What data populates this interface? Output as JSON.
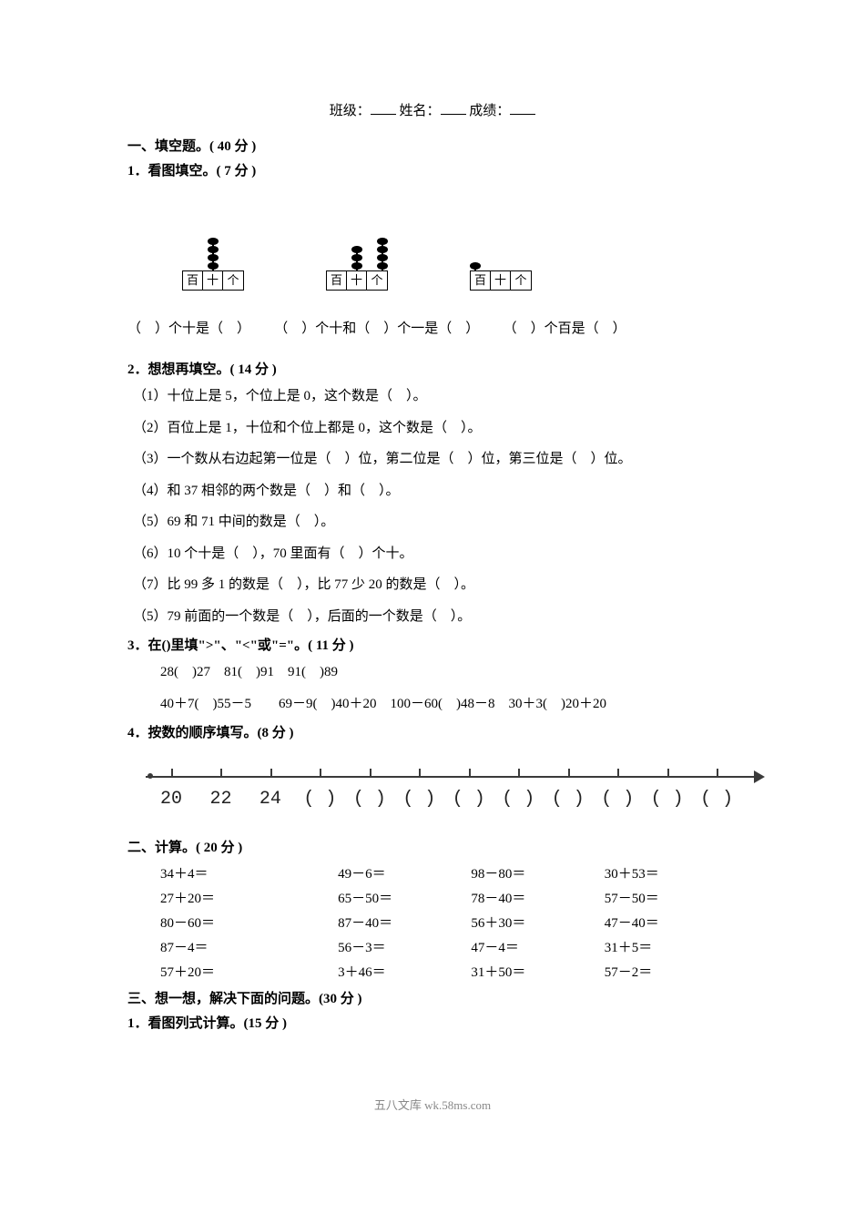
{
  "header": {
    "class_label": "班级：",
    "name_label": "姓名：",
    "score_label": "成绩："
  },
  "sec1": {
    "title": "一、填空题。( 40 分 )",
    "q1_title": "1．看图填空。( 7 分 )",
    "abacus": [
      {
        "beads": [
          0,
          4,
          0
        ],
        "labels": [
          "百",
          "十",
          "个"
        ]
      },
      {
        "beads": [
          0,
          3,
          4
        ],
        "labels": [
          "百",
          "十",
          "个"
        ]
      },
      {
        "beads": [
          1,
          0,
          0
        ],
        "labels": [
          "百",
          "十",
          "个"
        ]
      }
    ],
    "caption1": "（　）个十是（　）",
    "caption2": "（　）个十和（　）个一是（　）",
    "caption3": "（　）个百是（　）",
    "q2_title": "2．想想再填空。( 14 分 )",
    "q2_items": [
      "（1）十位上是 5，个位上是 0，这个数是（　）。",
      "（2）百位上是 1，十位和个位上都是 0，这个数是（　）。",
      "（3）一个数从右边起第一位是（　）位，第二位是（　）位，第三位是（　）位。",
      "（4）和 37 相邻的两个数是（　）和（　）。",
      "（5）69 和 71 中间的数是（　）。",
      "（6）10 个十是（　），70 里面有（　）个十。",
      "（7）比 99 多 1 的数是（　），比 77 少 20 的数是（　）。",
      "（5）79 前面的一个数是（　），后面的一个数是（　）。"
    ],
    "q3_title": "3．在()里填\">\"、\"<\"或\"=\"。( 11 分 )",
    "q3_line1": "28(　)27　81(　)91　91(　)89",
    "q3_line2": "40＋7(　)55－5　　69－9(　)40＋20　100－60(　)48－8　30＋3(　)20＋20",
    "q4_title": "4．按数的顺序填写。(8 分 )",
    "numline": {
      "ticks": 12,
      "labels": [
        "20",
        "22",
        "24",
        "(  )",
        "(  )",
        "(  )",
        "(  )",
        "(  )",
        "(  )",
        "(  )",
        "(  )",
        "(  )"
      ]
    }
  },
  "sec2": {
    "title": "二、计算。( 20 分 )",
    "rows": [
      [
        "34＋4＝",
        "49－6＝",
        "98－80＝",
        "30＋53＝"
      ],
      [
        "27＋20＝",
        "65－50＝",
        "78－40＝",
        "57－50＝"
      ],
      [
        "80－60＝",
        "87－40＝",
        "56＋30＝",
        "47－40＝"
      ],
      [
        "87－4＝",
        "56－3＝",
        "47－4＝",
        "31＋5＝"
      ],
      [
        "57＋20＝",
        "3＋46＝",
        "31＋50＝",
        "57－2＝"
      ]
    ]
  },
  "sec3": {
    "title": "三、想一想，解决下面的问题。(30 分 )",
    "q1": "1．看图列式计算。(15 分 )"
  },
  "footer": "五八文库 wk.58ms.com",
  "style": {
    "page_bg": "#ffffff",
    "text_color": "#000000",
    "numline_color": "#3a3a3a"
  }
}
